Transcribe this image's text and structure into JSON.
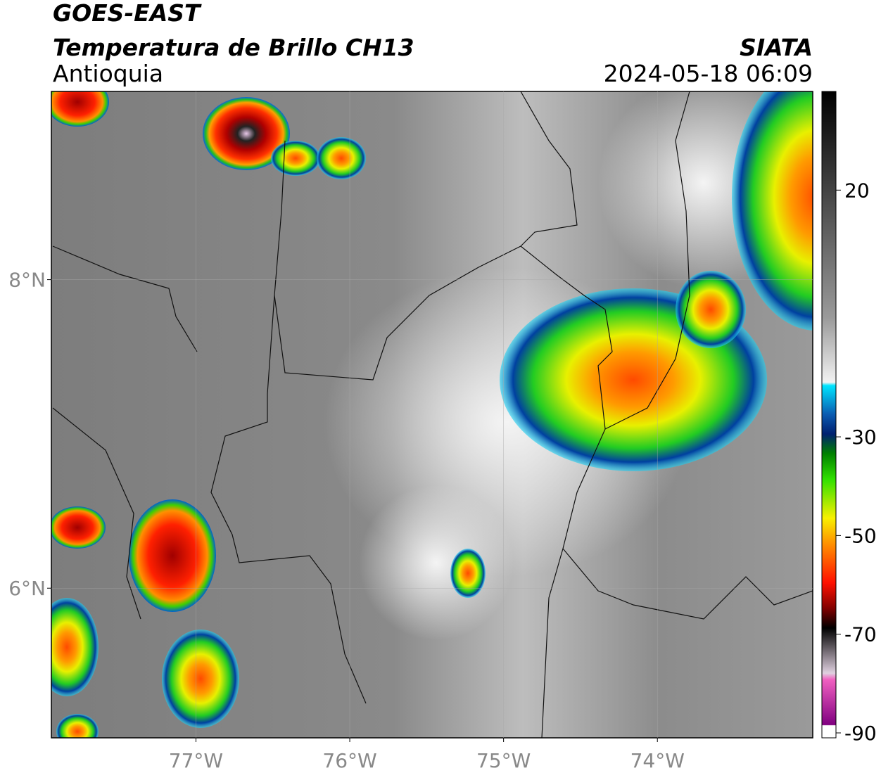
{
  "header": {
    "title": "GOES-EAST",
    "subtitle": "Temperatura de Brillo CH13",
    "region": "Antioquia",
    "agency": "SIATA",
    "datetime": "2024-05-18 06:09"
  },
  "map": {
    "xlim": [
      -77.94,
      -72.99
    ],
    "ylim": [
      5.03,
      9.22
    ],
    "xticks": [
      {
        "value": -77,
        "label": "77°W"
      },
      {
        "value": -76,
        "label": "76°W"
      },
      {
        "value": -75,
        "label": "75°W"
      },
      {
        "value": -74,
        "label": "74°W"
      }
    ],
    "yticks": [
      {
        "value": 8,
        "label": "8°N"
      },
      {
        "value": 6,
        "label": "6°N"
      }
    ],
    "grid": true
  },
  "colorbar": {
    "lim": [
      -91,
      40
    ],
    "ticks": [
      20,
      -30,
      -50,
      -70,
      -90
    ]
  }
}
